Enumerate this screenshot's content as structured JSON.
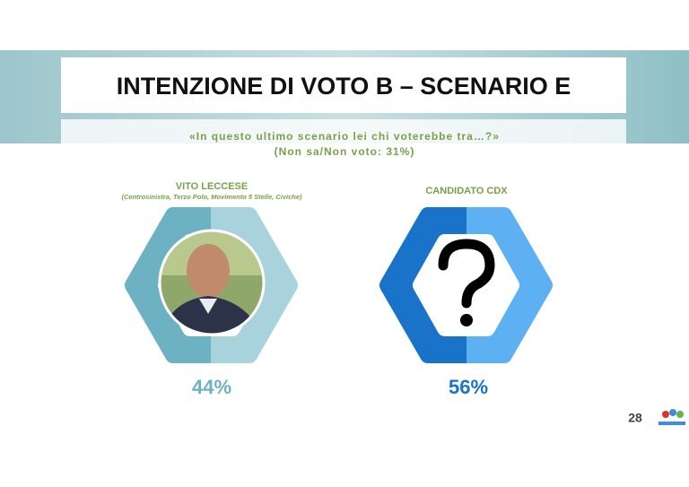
{
  "header": {
    "title": "INTENZIONE DI VOTO B – SCENARIO E",
    "question": "«In questo ultimo scenario lei chi voterebbe tra…?»",
    "note": "(Non sa/Non voto: 31%)"
  },
  "candidates": [
    {
      "name": "VITO LECCESE",
      "coalition": "(Centrosinistra, Terzo Polo, Movimento 5 Stelle, Civiche)",
      "share": "44%"
    },
    {
      "name": "CANDIDATO CDX",
      "share": "56%"
    }
  ],
  "footer": {
    "page": "28"
  }
}
